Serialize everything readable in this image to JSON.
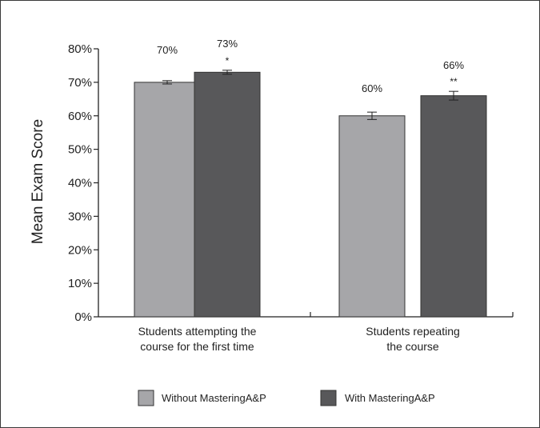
{
  "chart_data": {
    "type": "bar",
    "title": "",
    "ylabel": "Mean Exam Score",
    "xlabel": "",
    "ylim": [
      0,
      80
    ],
    "yticks": [
      "0%",
      "10%",
      "20%",
      "30%",
      "40%",
      "50%",
      "60%",
      "70%",
      "80%"
    ],
    "ytick_values": [
      0,
      10,
      20,
      30,
      40,
      50,
      60,
      70,
      80
    ],
    "grid": false,
    "legend_position": "bottom",
    "categories": [
      [
        "Students attempting the",
        "course for the first time"
      ],
      [
        "Students  repeating",
        "the course"
      ]
    ],
    "series": [
      {
        "name": "Without MasteringA&P",
        "color": "#a6a6a9",
        "values": [
          70,
          60
        ],
        "error": [
          0.5,
          1.1
        ],
        "value_labels": [
          "70%",
          "60%"
        ],
        "significance": [
          "",
          ""
        ]
      },
      {
        "name": "With MasteringA&P",
        "color": "#58585a",
        "values": [
          73,
          66
        ],
        "error": [
          0.6,
          1.3
        ],
        "value_labels": [
          "73%",
          "66%"
        ],
        "significance": [
          "*",
          "**"
        ]
      }
    ]
  }
}
